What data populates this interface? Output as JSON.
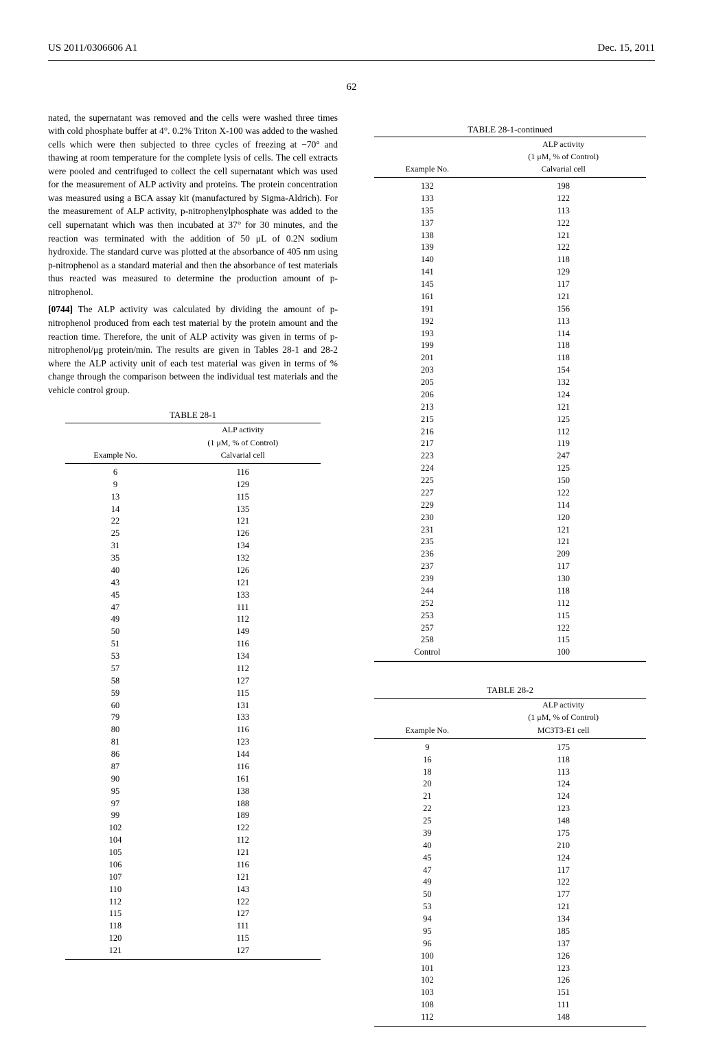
{
  "header": {
    "pubNumber": "US 2011/0306606 A1",
    "pubDate": "Dec. 15, 2011"
  },
  "pageNumber": "62",
  "leftCol": {
    "para1": "nated, the supernatant was removed and the cells were washed three times with cold phosphate buffer at 4°. 0.2% Triton X-100 was added to the washed cells which were then subjected to three cycles of freezing at −70° and thawing at room temperature for the complete lysis of cells. The cell extracts were pooled and centrifuged to collect the cell supernatant which was used for the measurement of ALP activity and proteins. The protein concentration was measured using a BCA assay kit (manufactured by Sigma-Aldrich). For the measurement of ALP activity, p-nitrophenylphosphate was added to the cell supernatant which was then incubated at 37° for 30 minutes, and the reaction was terminated with the addition of 50 μL of 0.2N sodium hydroxide. The standard curve was plotted at the absorbance of 405 nm using p-nitrophenol as a standard material and then the absorbance of test materials thus reacted was measured to determine the production amount of p-nitrophenol.",
    "para2Num": "[0744]",
    "para2": " The ALP activity was calculated by dividing the amount of p-nitrophenol produced from each test material by the protein amount and the reaction time. Therefore, the unit of ALP activity was given in terms of p-nitrophenol/μg protein/min. The results are given in Tables 28-1 and 28-2 where the ALP activity unit of each test material was given in terms of % change through the comparison between the individual test materials and the vehicle control group.",
    "table281": {
      "caption": "TABLE 28-1",
      "head1": "Example No.",
      "head2a": "ALP activity",
      "head2b": "(1 μM, % of Control)",
      "head2c": "Calvarial cell",
      "rows": [
        [
          "6",
          "116"
        ],
        [
          "9",
          "129"
        ],
        [
          "13",
          "115"
        ],
        [
          "14",
          "135"
        ],
        [
          "22",
          "121"
        ],
        [
          "25",
          "126"
        ],
        [
          "31",
          "134"
        ],
        [
          "35",
          "132"
        ],
        [
          "40",
          "126"
        ],
        [
          "43",
          "121"
        ],
        [
          "45",
          "133"
        ],
        [
          "47",
          "111"
        ],
        [
          "49",
          "112"
        ],
        [
          "50",
          "149"
        ],
        [
          "51",
          "116"
        ],
        [
          "53",
          "134"
        ],
        [
          "57",
          "112"
        ],
        [
          "58",
          "127"
        ],
        [
          "59",
          "115"
        ],
        [
          "60",
          "131"
        ],
        [
          "79",
          "133"
        ],
        [
          "80",
          "116"
        ],
        [
          "81",
          "123"
        ],
        [
          "86",
          "144"
        ],
        [
          "87",
          "116"
        ],
        [
          "90",
          "161"
        ],
        [
          "95",
          "138"
        ],
        [
          "97",
          "188"
        ],
        [
          "99",
          "189"
        ],
        [
          "102",
          "122"
        ],
        [
          "104",
          "112"
        ],
        [
          "105",
          "121"
        ],
        [
          "106",
          "116"
        ],
        [
          "107",
          "121"
        ],
        [
          "110",
          "143"
        ],
        [
          "112",
          "122"
        ],
        [
          "115",
          "127"
        ],
        [
          "118",
          "111"
        ],
        [
          "120",
          "115"
        ],
        [
          "121",
          "127"
        ]
      ]
    }
  },
  "rightCol": {
    "table281cont": {
      "caption": "TABLE 28-1-continued",
      "head1": "Example No.",
      "head2a": "ALP activity",
      "head2b": "(1 μM, % of Control)",
      "head2c": "Calvarial cell",
      "rows": [
        [
          "132",
          "198"
        ],
        [
          "133",
          "122"
        ],
        [
          "135",
          "113"
        ],
        [
          "137",
          "122"
        ],
        [
          "138",
          "121"
        ],
        [
          "139",
          "122"
        ],
        [
          "140",
          "118"
        ],
        [
          "141",
          "129"
        ],
        [
          "145",
          "117"
        ],
        [
          "161",
          "121"
        ],
        [
          "191",
          "156"
        ],
        [
          "192",
          "113"
        ],
        [
          "193",
          "114"
        ],
        [
          "199",
          "118"
        ],
        [
          "201",
          "118"
        ],
        [
          "203",
          "154"
        ],
        [
          "205",
          "132"
        ],
        [
          "206",
          "124"
        ],
        [
          "213",
          "121"
        ],
        [
          "215",
          "125"
        ],
        [
          "216",
          "112"
        ],
        [
          "217",
          "119"
        ],
        [
          "223",
          "247"
        ],
        [
          "224",
          "125"
        ],
        [
          "225",
          "150"
        ],
        [
          "227",
          "122"
        ],
        [
          "229",
          "114"
        ],
        [
          "230",
          "120"
        ],
        [
          "231",
          "121"
        ],
        [
          "235",
          "121"
        ],
        [
          "236",
          "209"
        ],
        [
          "237",
          "117"
        ],
        [
          "239",
          "130"
        ],
        [
          "244",
          "118"
        ],
        [
          "252",
          "112"
        ],
        [
          "253",
          "115"
        ],
        [
          "257",
          "122"
        ],
        [
          "258",
          "115"
        ],
        [
          "Control",
          "100"
        ]
      ]
    },
    "table282": {
      "caption": "TABLE 28-2",
      "head1": "Example No.",
      "head2a": "ALP activity",
      "head2b": "(1 μM, % of Control)",
      "head2c": "MC3T3-E1 cell",
      "rows": [
        [
          "9",
          "175"
        ],
        [
          "16",
          "118"
        ],
        [
          "18",
          "113"
        ],
        [
          "20",
          "124"
        ],
        [
          "21",
          "124"
        ],
        [
          "22",
          "123"
        ],
        [
          "25",
          "148"
        ],
        [
          "39",
          "175"
        ],
        [
          "40",
          "210"
        ],
        [
          "45",
          "124"
        ],
        [
          "47",
          "117"
        ],
        [
          "49",
          "122"
        ],
        [
          "50",
          "177"
        ],
        [
          "53",
          "121"
        ],
        [
          "94",
          "134"
        ],
        [
          "95",
          "185"
        ],
        [
          "96",
          "137"
        ],
        [
          "100",
          "126"
        ],
        [
          "101",
          "123"
        ],
        [
          "102",
          "126"
        ],
        [
          "103",
          "151"
        ],
        [
          "108",
          "111"
        ],
        [
          "112",
          "148"
        ]
      ]
    }
  }
}
